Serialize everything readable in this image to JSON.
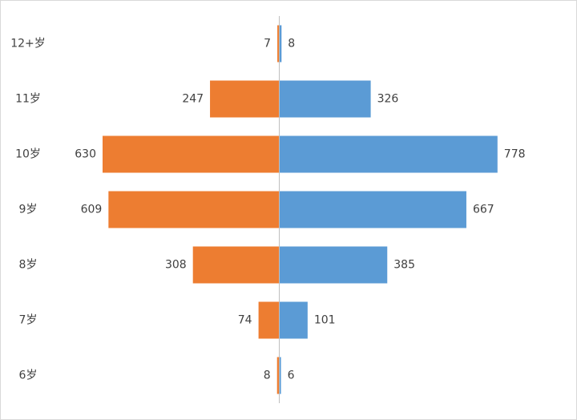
{
  "chart_data": {
    "type": "butterfly-bar",
    "categories": [
      "12+岁",
      "11岁",
      "10岁",
      "9岁",
      "8岁",
      "7岁",
      "6岁"
    ],
    "series": [
      {
        "color": "#ed7d31",
        "side": "left",
        "values": [
          7,
          247,
          630,
          609,
          308,
          74,
          8
        ]
      },
      {
        "color": "#5b9bd5",
        "side": "right",
        "values": [
          8,
          326,
          778,
          667,
          385,
          101,
          6
        ]
      }
    ],
    "xlim": [
      0,
      800
    ]
  }
}
